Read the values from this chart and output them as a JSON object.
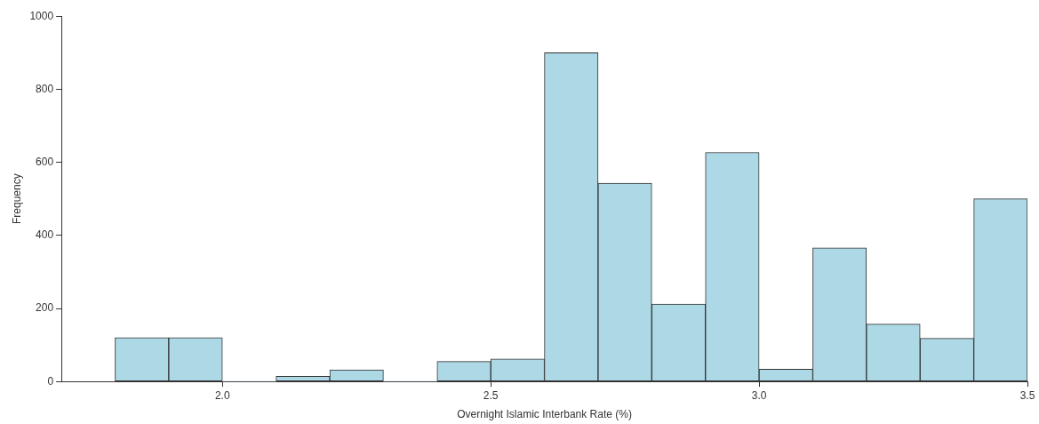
{
  "chart_data": {
    "type": "histogram",
    "xlabel": "Overnight Islamic Interbank Rate (%)",
    "ylabel": "Frequency",
    "bins": [
      1.8,
      1.9,
      2.0,
      2.1,
      2.2,
      2.3,
      2.4,
      2.5,
      2.6,
      2.7,
      2.8,
      2.9,
      3.0,
      3.1,
      3.2,
      3.3,
      3.4,
      3.5
    ],
    "values": [
      120,
      120,
      0,
      14,
      32,
      0,
      55,
      62,
      900,
      543,
      212,
      627,
      34,
      366,
      157,
      118,
      500
    ],
    "color": "#add8e6",
    "xlim": [
      1.7,
      3.5
    ],
    "xticks": [
      {
        "value": 2.0,
        "label": "2.0"
      },
      {
        "value": 2.5,
        "label": "2.5"
      },
      {
        "value": 3.0,
        "label": "3.0"
      },
      {
        "value": 3.5,
        "label": "3.5"
      }
    ],
    "ylim": [
      0,
      1000
    ],
    "yticks": [
      0,
      200,
      400,
      600,
      800,
      1000
    ],
    "grid": false,
    "legend": false
  }
}
